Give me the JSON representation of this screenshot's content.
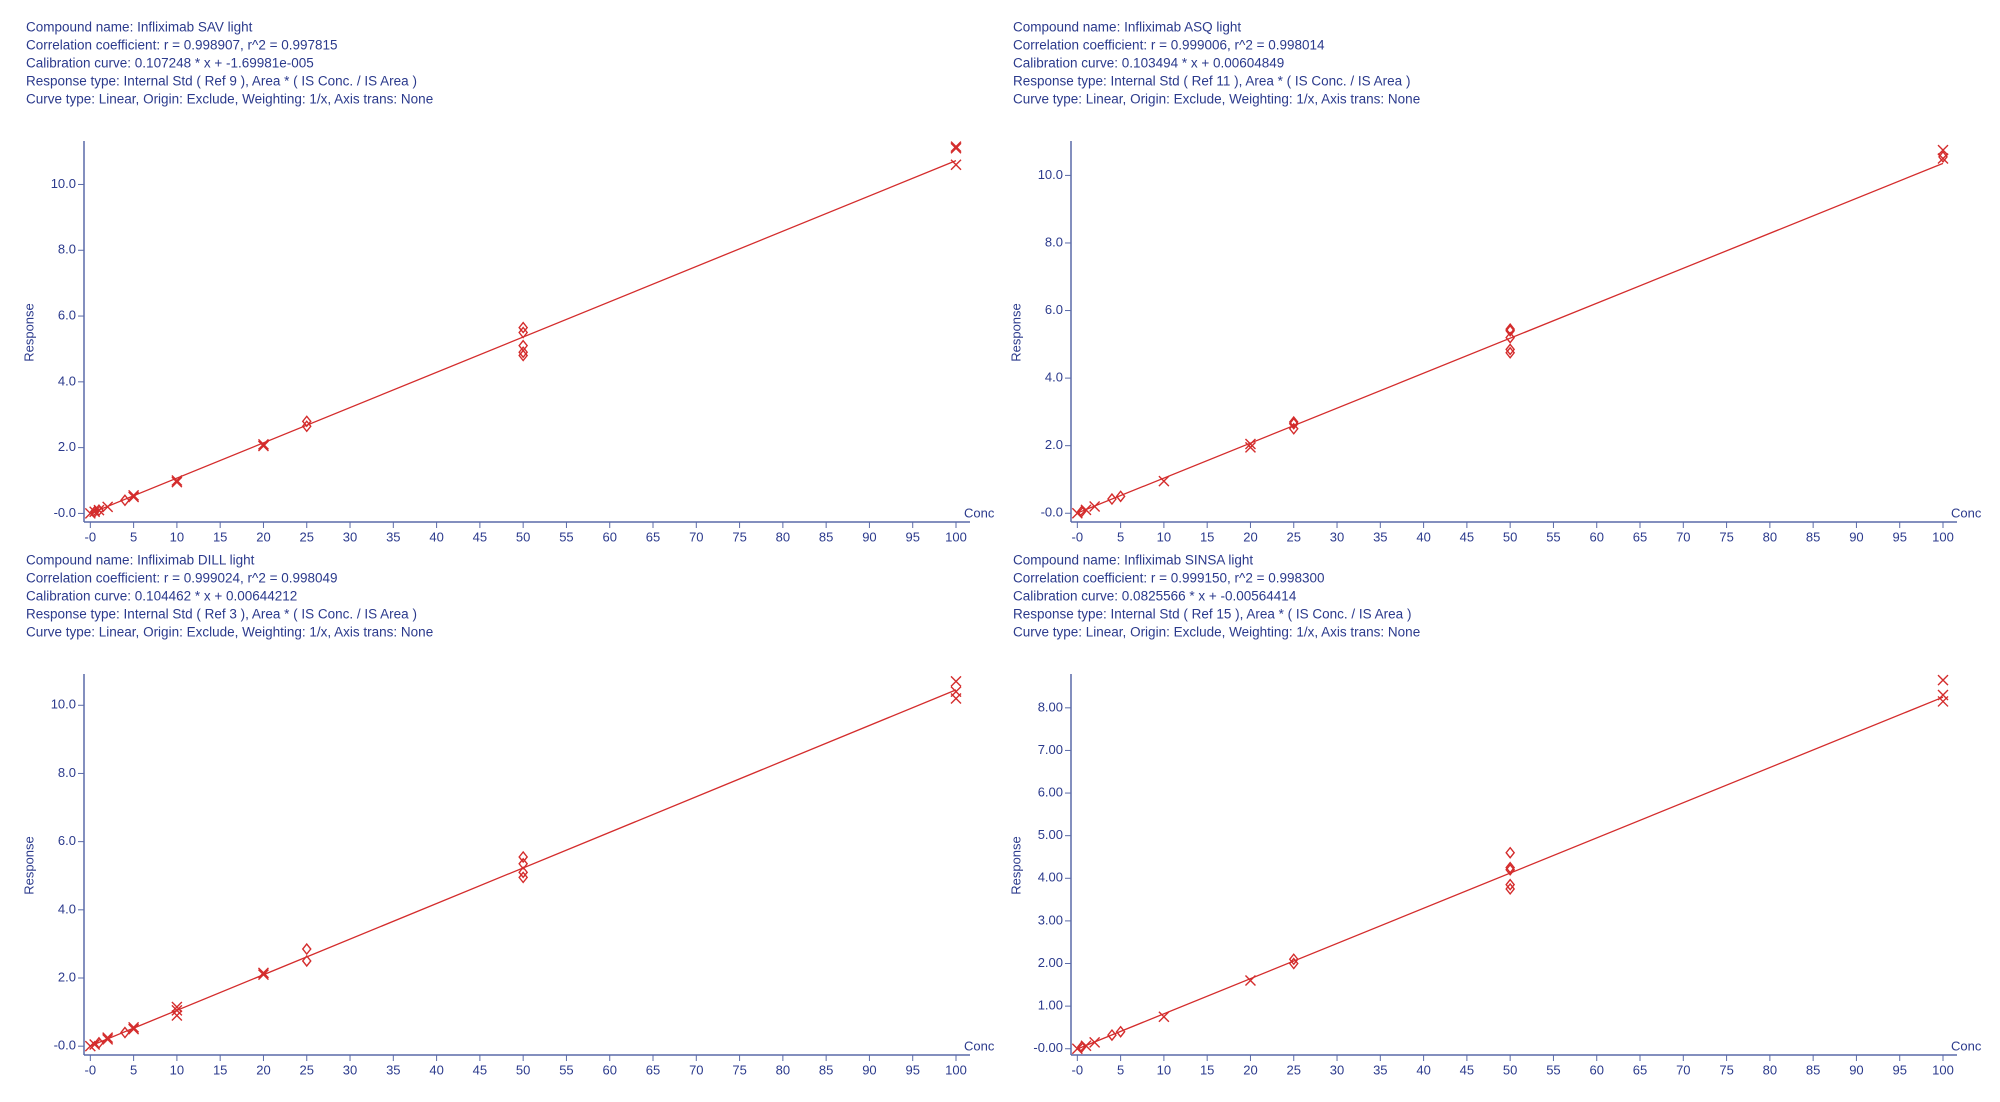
{
  "chart_data": [
    {
      "type": "scatter",
      "header": [
        "Compound name: Infliximab SAV light",
        "Correlation coefficient: r = 0.998907, r^2 = 0.997815",
        "Calibration curve: 0.107248 * x + -1.69981e-005",
        "Response type: Internal Std ( Ref 9 ), Area * ( IS Conc. / IS Area )",
        "Curve type: Linear, Origin: Exclude, Weighting: 1/x, Axis trans: None"
      ],
      "ylabel": "Response",
      "xlabel": "Conc",
      "xlim": [
        -0.5,
        100
      ],
      "ylim": [
        -0.2,
        11.2
      ],
      "xticks": [
        {
          "value": 0,
          "label": "-0"
        },
        5,
        10,
        15,
        20,
        25,
        30,
        35,
        40,
        45,
        50,
        55,
        60,
        65,
        70,
        75,
        80,
        85,
        90,
        95,
        100
      ],
      "yticks": [
        {
          "value": 0,
          "label": "-0.0"
        },
        {
          "value": 2,
          "label": "2.0"
        },
        {
          "value": 4,
          "label": "4.0"
        },
        {
          "value": 6,
          "label": "6.0"
        },
        {
          "value": 8,
          "label": "8.0"
        },
        {
          "value": 10,
          "label": "10.0"
        }
      ],
      "series": [
        {
          "color": "#d42c2c",
          "marker": "x",
          "x": [
            0,
            0.5,
            1,
            2,
            5,
            5,
            10,
            10,
            20,
            20,
            100,
            100,
            100
          ],
          "values": [
            0,
            0.05,
            0.1,
            0.2,
            0.5,
            0.55,
            0.95,
            1.0,
            2.05,
            2.1,
            10.6,
            11.1,
            11.15
          ]
        },
        {
          "color": "#d42c2c",
          "marker": "diamond",
          "x": [
            0.5,
            1,
            4,
            25,
            25,
            50,
            50,
            50,
            50,
            50
          ],
          "values": [
            0.05,
            0.1,
            0.4,
            2.65,
            2.8,
            4.8,
            4.9,
            5.1,
            5.5,
            5.65
          ]
        },
        {
          "color": "#d42c2c",
          "marker": "line",
          "x": [
            0,
            100
          ],
          "values": [
            -1.7e-05,
            10.7248
          ]
        }
      ]
    },
    {
      "type": "scatter",
      "header": [
        "Compound name: Infliximab ASQ light",
        "Correlation coefficient: r = 0.999006, r^2 = 0.998014",
        "Calibration curve: 0.103494 * x + 0.00604849",
        "Response type: Internal Std ( Ref 11 ), Area * ( IS Conc. / IS Area )",
        "Curve type: Linear, Origin: Exclude, Weighting: 1/x, Axis trans: None"
      ],
      "ylabel": "Response",
      "xlabel": "Conc",
      "xlim": [
        -0.5,
        100
      ],
      "ylim": [
        -0.2,
        10.9
      ],
      "xticks": [
        {
          "value": 0,
          "label": "-0"
        },
        5,
        10,
        15,
        20,
        25,
        30,
        35,
        40,
        45,
        50,
        55,
        60,
        65,
        70,
        75,
        80,
        85,
        90,
        95,
        100
      ],
      "yticks": [
        {
          "value": 0,
          "label": "-0.0"
        },
        {
          "value": 2,
          "label": "2.0"
        },
        {
          "value": 4,
          "label": "4.0"
        },
        {
          "value": 6,
          "label": "6.0"
        },
        {
          "value": 8,
          "label": "8.0"
        },
        {
          "value": 10,
          "label": "10.0"
        }
      ],
      "series": [
        {
          "color": "#d42c2c",
          "marker": "x",
          "x": [
            0,
            1,
            2,
            10,
            20,
            20,
            100,
            100
          ],
          "values": [
            0,
            0.1,
            0.2,
            0.95,
            1.95,
            2.05,
            10.5,
            10.75
          ]
        },
        {
          "color": "#d42c2c",
          "marker": "diamond",
          "x": [
            0.5,
            4,
            5,
            25,
            25,
            25,
            50,
            50,
            50,
            50,
            50,
            100
          ],
          "values": [
            0.05,
            0.42,
            0.5,
            2.5,
            2.65,
            2.7,
            4.75,
            4.85,
            5.2,
            5.4,
            5.45,
            10.55
          ]
        },
        {
          "color": "#d42c2c",
          "marker": "line",
          "x": [
            0,
            100
          ],
          "values": [
            0.006,
            10.356
          ]
        }
      ]
    },
    {
      "type": "scatter",
      "header": [
        "Compound name: Infliximab DILL light",
        "Correlation coefficient: r = 0.999024, r^2 = 0.998049",
        "Calibration curve: 0.104462 * x + 0.00644212",
        "Response type: Internal Std ( Ref 3 ), Area * ( IS Conc. / IS Area )",
        "Curve type: Linear, Origin: Exclude, Weighting: 1/x, Axis trans: None"
      ],
      "ylabel": "Response",
      "xlabel": "Conc",
      "xlim": [
        -0.5,
        100
      ],
      "ylim": [
        -0.2,
        10.8
      ],
      "xticks": [
        {
          "value": 0,
          "label": "-0"
        },
        5,
        10,
        15,
        20,
        25,
        30,
        35,
        40,
        45,
        50,
        55,
        60,
        65,
        70,
        75,
        80,
        85,
        90,
        95,
        100
      ],
      "yticks": [
        {
          "value": 0,
          "label": "-0.0"
        },
        {
          "value": 2,
          "label": "2.0"
        },
        {
          "value": 4,
          "label": "4.0"
        },
        {
          "value": 6,
          "label": "6.0"
        },
        {
          "value": 8,
          "label": "8.0"
        },
        {
          "value": 10,
          "label": "10.0"
        }
      ],
      "series": [
        {
          "color": "#d42c2c",
          "marker": "x",
          "x": [
            0,
            0.5,
            2,
            2,
            5,
            5,
            10,
            10,
            10,
            20,
            20,
            100,
            100,
            100
          ],
          "values": [
            0,
            0.05,
            0.2,
            0.25,
            0.5,
            0.55,
            0.9,
            1.05,
            1.15,
            2.1,
            2.15,
            10.2,
            10.4,
            10.7
          ]
        },
        {
          "color": "#d42c2c",
          "marker": "diamond",
          "x": [
            1,
            4,
            25,
            25,
            50,
            50,
            50,
            50
          ],
          "values": [
            0.1,
            0.4,
            2.5,
            2.85,
            4.95,
            5.1,
            5.35,
            5.55
          ]
        },
        {
          "color": "#d42c2c",
          "marker": "line",
          "x": [
            0,
            100
          ],
          "values": [
            0.0064,
            10.4526
          ]
        }
      ]
    },
    {
      "type": "scatter",
      "header": [
        "Compound name: Infliximab SINSA light",
        "Correlation coefficient: r = 0.999150, r^2 = 0.998300",
        "Calibration curve: 0.0825566 * x + -0.00564414",
        "Response type: Internal Std ( Ref 15 ), Area * ( IS Conc. / IS Area )",
        "Curve type: Linear, Origin: Exclude, Weighting: 1/x, Axis trans: None"
      ],
      "ylabel": "Response",
      "xlabel": "Conc",
      "xlim": [
        -0.5,
        100
      ],
      "ylim": [
        -0.1,
        8.7
      ],
      "xticks": [
        {
          "value": 0,
          "label": "-0"
        },
        5,
        10,
        15,
        20,
        25,
        30,
        35,
        40,
        45,
        50,
        55,
        60,
        65,
        70,
        75,
        80,
        85,
        90,
        95,
        100
      ],
      "yticks": [
        {
          "value": 0,
          "label": "-0.00"
        },
        {
          "value": 1,
          "label": "1.00"
        },
        {
          "value": 2,
          "label": "2.00"
        },
        {
          "value": 3,
          "label": "3.00"
        },
        {
          "value": 4,
          "label": "4.00"
        },
        {
          "value": 5,
          "label": "5.00"
        },
        {
          "value": 6,
          "label": "6.00"
        },
        {
          "value": 7,
          "label": "7.00"
        },
        {
          "value": 8,
          "label": "8.00"
        }
      ],
      "series": [
        {
          "color": "#d42c2c",
          "marker": "x",
          "x": [
            0,
            1,
            2,
            10,
            20,
            100,
            100,
            100
          ],
          "values": [
            0,
            0.07,
            0.15,
            0.75,
            1.6,
            8.15,
            8.3,
            8.65
          ]
        },
        {
          "color": "#d42c2c",
          "marker": "diamond",
          "x": [
            0.5,
            4,
            5,
            25,
            25,
            50,
            50,
            50,
            50,
            50
          ],
          "values": [
            0.04,
            0.32,
            0.4,
            2.0,
            2.1,
            3.75,
            3.85,
            4.2,
            4.25,
            4.6
          ]
        },
        {
          "color": "#d42c2c",
          "marker": "line",
          "x": [
            0,
            100
          ],
          "values": [
            -0.0056,
            8.25
          ]
        }
      ]
    }
  ]
}
